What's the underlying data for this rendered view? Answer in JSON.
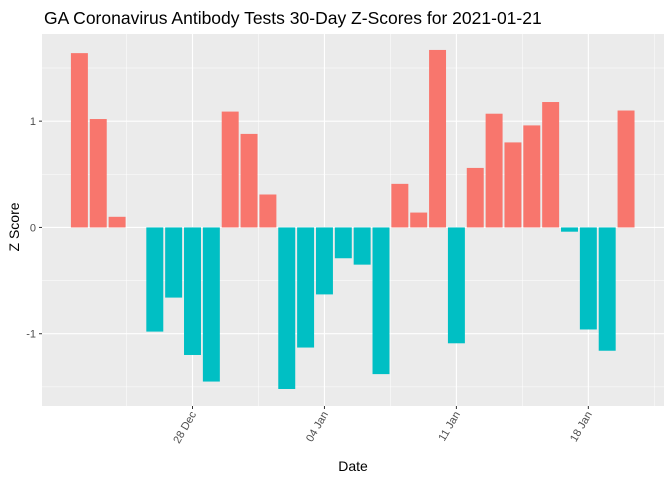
{
  "chart_data": {
    "type": "bar",
    "title": "GA Coronavirus Antibody Tests 30-Day Z-Scores for 2021-01-21",
    "xlabel": "Date",
    "ylabel": "Z Score",
    "x_start": "2020-12-22",
    "x": [
      "2020-12-22",
      "2020-12-23",
      "2020-12-24",
      "2020-12-25",
      "2020-12-26",
      "2020-12-27",
      "2020-12-28",
      "2020-12-29",
      "2020-12-30",
      "2020-12-31",
      "2021-01-01",
      "2021-01-02",
      "2021-01-03",
      "2021-01-04",
      "2021-01-05",
      "2021-01-06",
      "2021-01-07",
      "2021-01-08",
      "2021-01-09",
      "2021-01-10",
      "2021-01-11",
      "2021-01-12",
      "2021-01-13",
      "2021-01-14",
      "2021-01-15",
      "2021-01-16",
      "2021-01-17",
      "2021-01-18",
      "2021-01-19",
      "2021-01-20",
      "2021-01-21"
    ],
    "values": [
      1.64,
      1.02,
      0.1,
      null,
      -0.98,
      -0.66,
      -1.2,
      -1.45,
      1.09,
      0.88,
      0.31,
      -1.52,
      -1.13,
      -0.63,
      -0.29,
      -0.35,
      -1.38,
      0.41,
      0.14,
      1.67,
      -1.09,
      0.56,
      1.07,
      0.8,
      0.96,
      1.18,
      -0.04,
      -0.96,
      -1.16,
      1.1,
      null
    ],
    "x_ticks": [
      {
        "date": "2020-12-28",
        "label": "28 Dec"
      },
      {
        "date": "2021-01-04",
        "label": "04 Jan"
      },
      {
        "date": "2021-01-11",
        "label": "11 Jan"
      },
      {
        "date": "2021-01-18",
        "label": "18 Jan"
      }
    ],
    "y_ticks": [
      -1,
      0,
      1
    ],
    "ylim": [
      -1.68,
      1.82
    ],
    "grid": true,
    "colors": {
      "positive": "#F8766D",
      "negative": "#00BFC4",
      "panel": "#EBEBEB",
      "grid": "#FFFFFF"
    }
  }
}
